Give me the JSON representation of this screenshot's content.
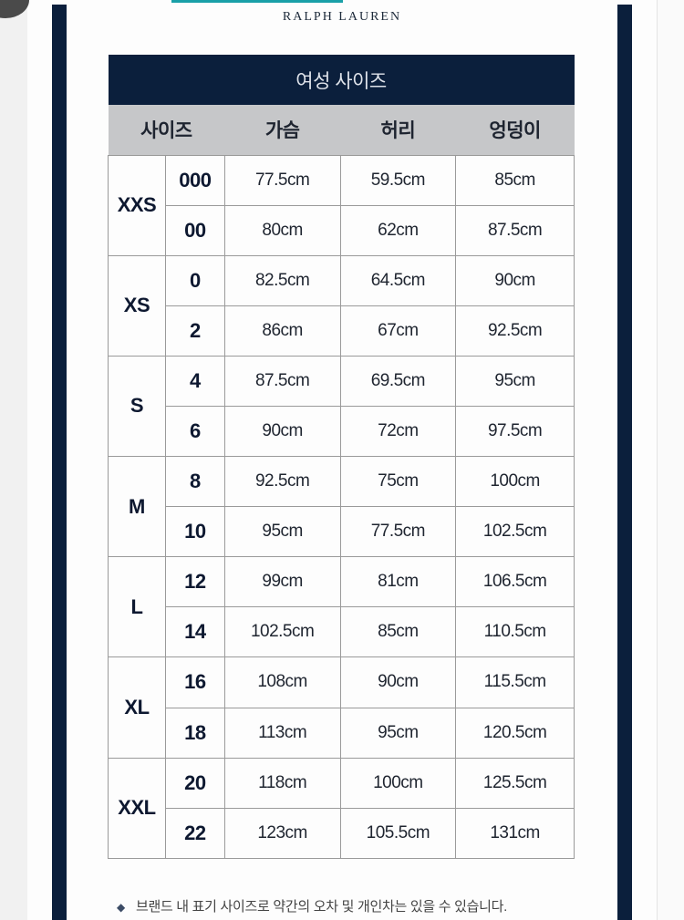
{
  "brand": "RALPH LAUREN",
  "table": {
    "title": "여성 사이즈",
    "headers": [
      "사이즈",
      "가슴",
      "허리",
      "엉덩이"
    ],
    "groups": [
      {
        "label": "XXS",
        "rows": [
          [
            "000",
            "77.5cm",
            "59.5cm",
            "85cm"
          ],
          [
            "00",
            "80cm",
            "62cm",
            "87.5cm"
          ]
        ]
      },
      {
        "label": "XS",
        "rows": [
          [
            "0",
            "82.5cm",
            "64.5cm",
            "90cm"
          ],
          [
            "2",
            "86cm",
            "67cm",
            "92.5cm"
          ]
        ]
      },
      {
        "label": "S",
        "rows": [
          [
            "4",
            "87.5cm",
            "69.5cm",
            "95cm"
          ],
          [
            "6",
            "90cm",
            "72cm",
            "97.5cm"
          ]
        ]
      },
      {
        "label": "M",
        "rows": [
          [
            "8",
            "92.5cm",
            "75cm",
            "100cm"
          ],
          [
            "10",
            "95cm",
            "77.5cm",
            "102.5cm"
          ]
        ]
      },
      {
        "label": "L",
        "rows": [
          [
            "12",
            "99cm",
            "81cm",
            "106.5cm"
          ],
          [
            "14",
            "102.5cm",
            "85cm",
            "110.5cm"
          ]
        ]
      },
      {
        "label": "XL",
        "rows": [
          [
            "16",
            "108cm",
            "90cm",
            "115.5cm"
          ],
          [
            "18",
            "113cm",
            "95cm",
            "120.5cm"
          ]
        ]
      },
      {
        "label": "XXL",
        "rows": [
          [
            "20",
            "118cm",
            "100cm",
            "125.5cm"
          ],
          [
            "22",
            "123cm",
            "105.5cm",
            "131cm"
          ]
        ]
      }
    ]
  },
  "note": {
    "icon": "diamond-bullet-icon",
    "text": "브랜드 내 표기 사이즈로 약간의 오차 및 개인차는 있을 수 있습니다."
  },
  "colors": {
    "navy": "#0b1f3c",
    "header_gray": "#c6c7c9",
    "accent_teal": "#1aa0a8"
  }
}
